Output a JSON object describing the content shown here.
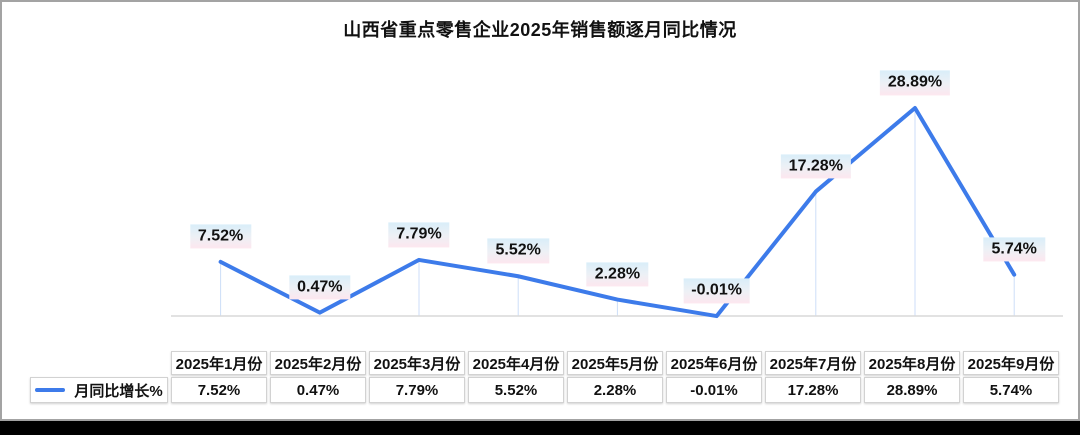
{
  "title": "山西省重点零售企业2025年销售额逐月同比情况",
  "legend": {
    "label": "月同比增长%"
  },
  "colors": {
    "line": "#3d7bea",
    "drop_line": "#ccdef8",
    "axis": "#d9d9d9",
    "label_bg_top": "#d9eef9",
    "label_bg_bottom": "#fde7ef",
    "table_border": "#d2d2d2",
    "text": "#111111",
    "bottom_bar": "#000000"
  },
  "chart_data": {
    "type": "line",
    "title": "山西省重点零售企业2025年销售额逐月同比情况",
    "series": [
      {
        "name": "月同比增长%",
        "values": [
          7.52,
          0.47,
          7.79,
          5.52,
          2.28,
          -0.01,
          17.28,
          28.89,
          5.74
        ],
        "labels": [
          "7.52%",
          "0.47%",
          "7.79%",
          "5.52%",
          "2.28%",
          "-0.01%",
          "17.28%",
          "28.89%",
          "5.74%"
        ]
      }
    ],
    "categories": [
      "2025年1月份",
      "2025年2月份",
      "2025年3月份",
      "2025年4月份",
      "2025年5月份",
      "2025年6月份",
      "2025年7月份",
      "2025年8月份",
      "2025年9月份"
    ],
    "xlabel": "",
    "ylabel": "",
    "ylim": [
      -0.5,
      30
    ],
    "grid": false,
    "data_labels": true,
    "legend_position": "table-row-left"
  }
}
